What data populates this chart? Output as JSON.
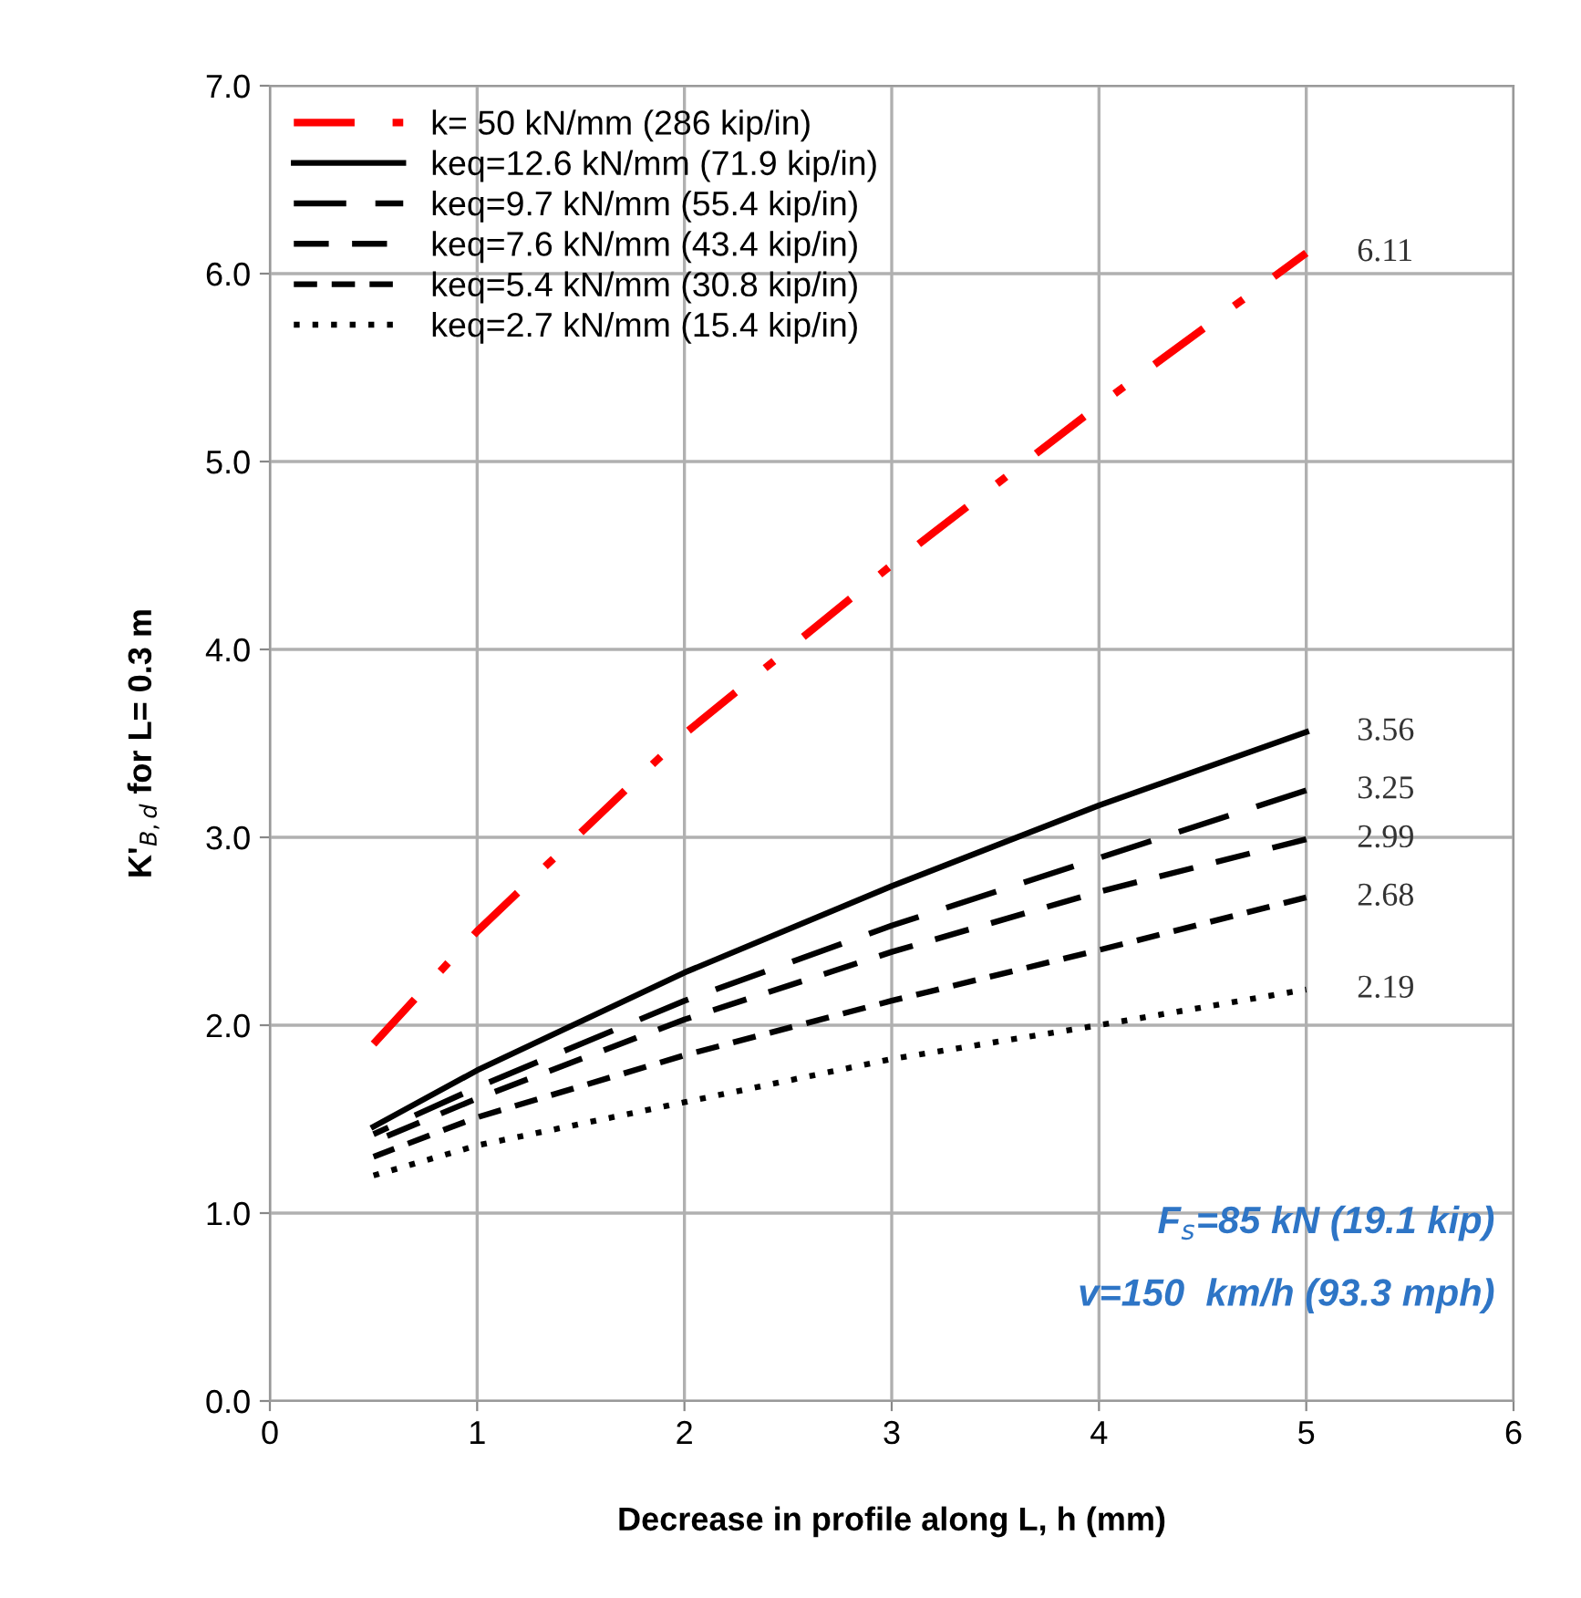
{
  "chart_data": {
    "type": "line",
    "xlabel": "Decrease in profile along L, h (mm)",
    "ylabel": "K'$_{B,d}$ for L= 0.3 m",
    "xlim": [
      0,
      6
    ],
    "xticks": [
      0,
      1,
      2,
      3,
      4,
      5,
      6
    ],
    "ylim": [
      0,
      7
    ],
    "yticks": [
      {
        "value": 0,
        "label": "0.0"
      },
      {
        "value": 1,
        "label": "1.0"
      },
      {
        "value": 2,
        "label": "2.0"
      },
      {
        "value": 3,
        "label": "3.0"
      },
      {
        "value": 4,
        "label": "4.0"
      },
      {
        "value": 5,
        "label": "5.0"
      },
      {
        "value": 6,
        "label": "6.0"
      },
      {
        "value": 7,
        "label": "7.0"
      }
    ],
    "grid": true,
    "legend": "top left",
    "marker": "none",
    "x": [
      0.5,
      1,
      2,
      3,
      4,
      5
    ],
    "series": [
      {
        "name": "k= 50 kN/mm (286 kip/in)",
        "color": "#ff0000",
        "line_style": "dashdot",
        "values": [
          1.9,
          2.5,
          3.55,
          4.45,
          5.3,
          6.11
        ],
        "value_labels": [
          null,
          null,
          null,
          null,
          null,
          "6.11"
        ]
      },
      {
        "name": "keq=12.6 kN/mm (71.9 kip/in)",
        "color": "#000000",
        "line_style": "solid",
        "values": [
          1.46,
          1.76,
          2.28,
          2.74,
          3.17,
          3.56
        ],
        "value_labels": [
          null,
          null,
          null,
          null,
          null,
          "3.56"
        ]
      },
      {
        "name": "keq=9.7 kN/mm (55.4 kip/in)",
        "color": "#000000",
        "line_style": "dashed",
        "values": [
          1.42,
          1.67,
          2.13,
          2.53,
          2.89,
          3.25
        ],
        "value_labels": [
          null,
          null,
          null,
          null,
          null,
          "3.25"
        ]
      },
      {
        "name": "keq=7.6 kN/mm (43.4 kip/in)",
        "color": "#000000",
        "line_style": "dashed",
        "values": [
          1.38,
          1.61,
          2.03,
          2.39,
          2.71,
          2.99
        ],
        "value_labels": [
          null,
          null,
          null,
          null,
          null,
          "2.99"
        ]
      },
      {
        "name": "keq=5.4 kN/mm (30.8 kip/in)",
        "color": "#000000",
        "line_style": "dashed",
        "values": [
          1.3,
          1.51,
          1.84,
          2.13,
          2.4,
          2.68
        ],
        "value_labels": [
          null,
          null,
          null,
          null,
          null,
          "2.68"
        ]
      },
      {
        "name": "keq=2.7 kN/mm (15.4 kip/in)",
        "color": "#000000",
        "line_style": "dotted",
        "values": [
          1.2,
          1.36,
          1.59,
          1.82,
          2.0,
          2.19
        ],
        "value_labels": [
          null,
          null,
          null,
          null,
          null,
          "2.19"
        ]
      }
    ],
    "annotations": [
      "F$_{s}$=85 kN (19.1 kip)",
      "v=150  km/h (93.3 mph)"
    ]
  }
}
